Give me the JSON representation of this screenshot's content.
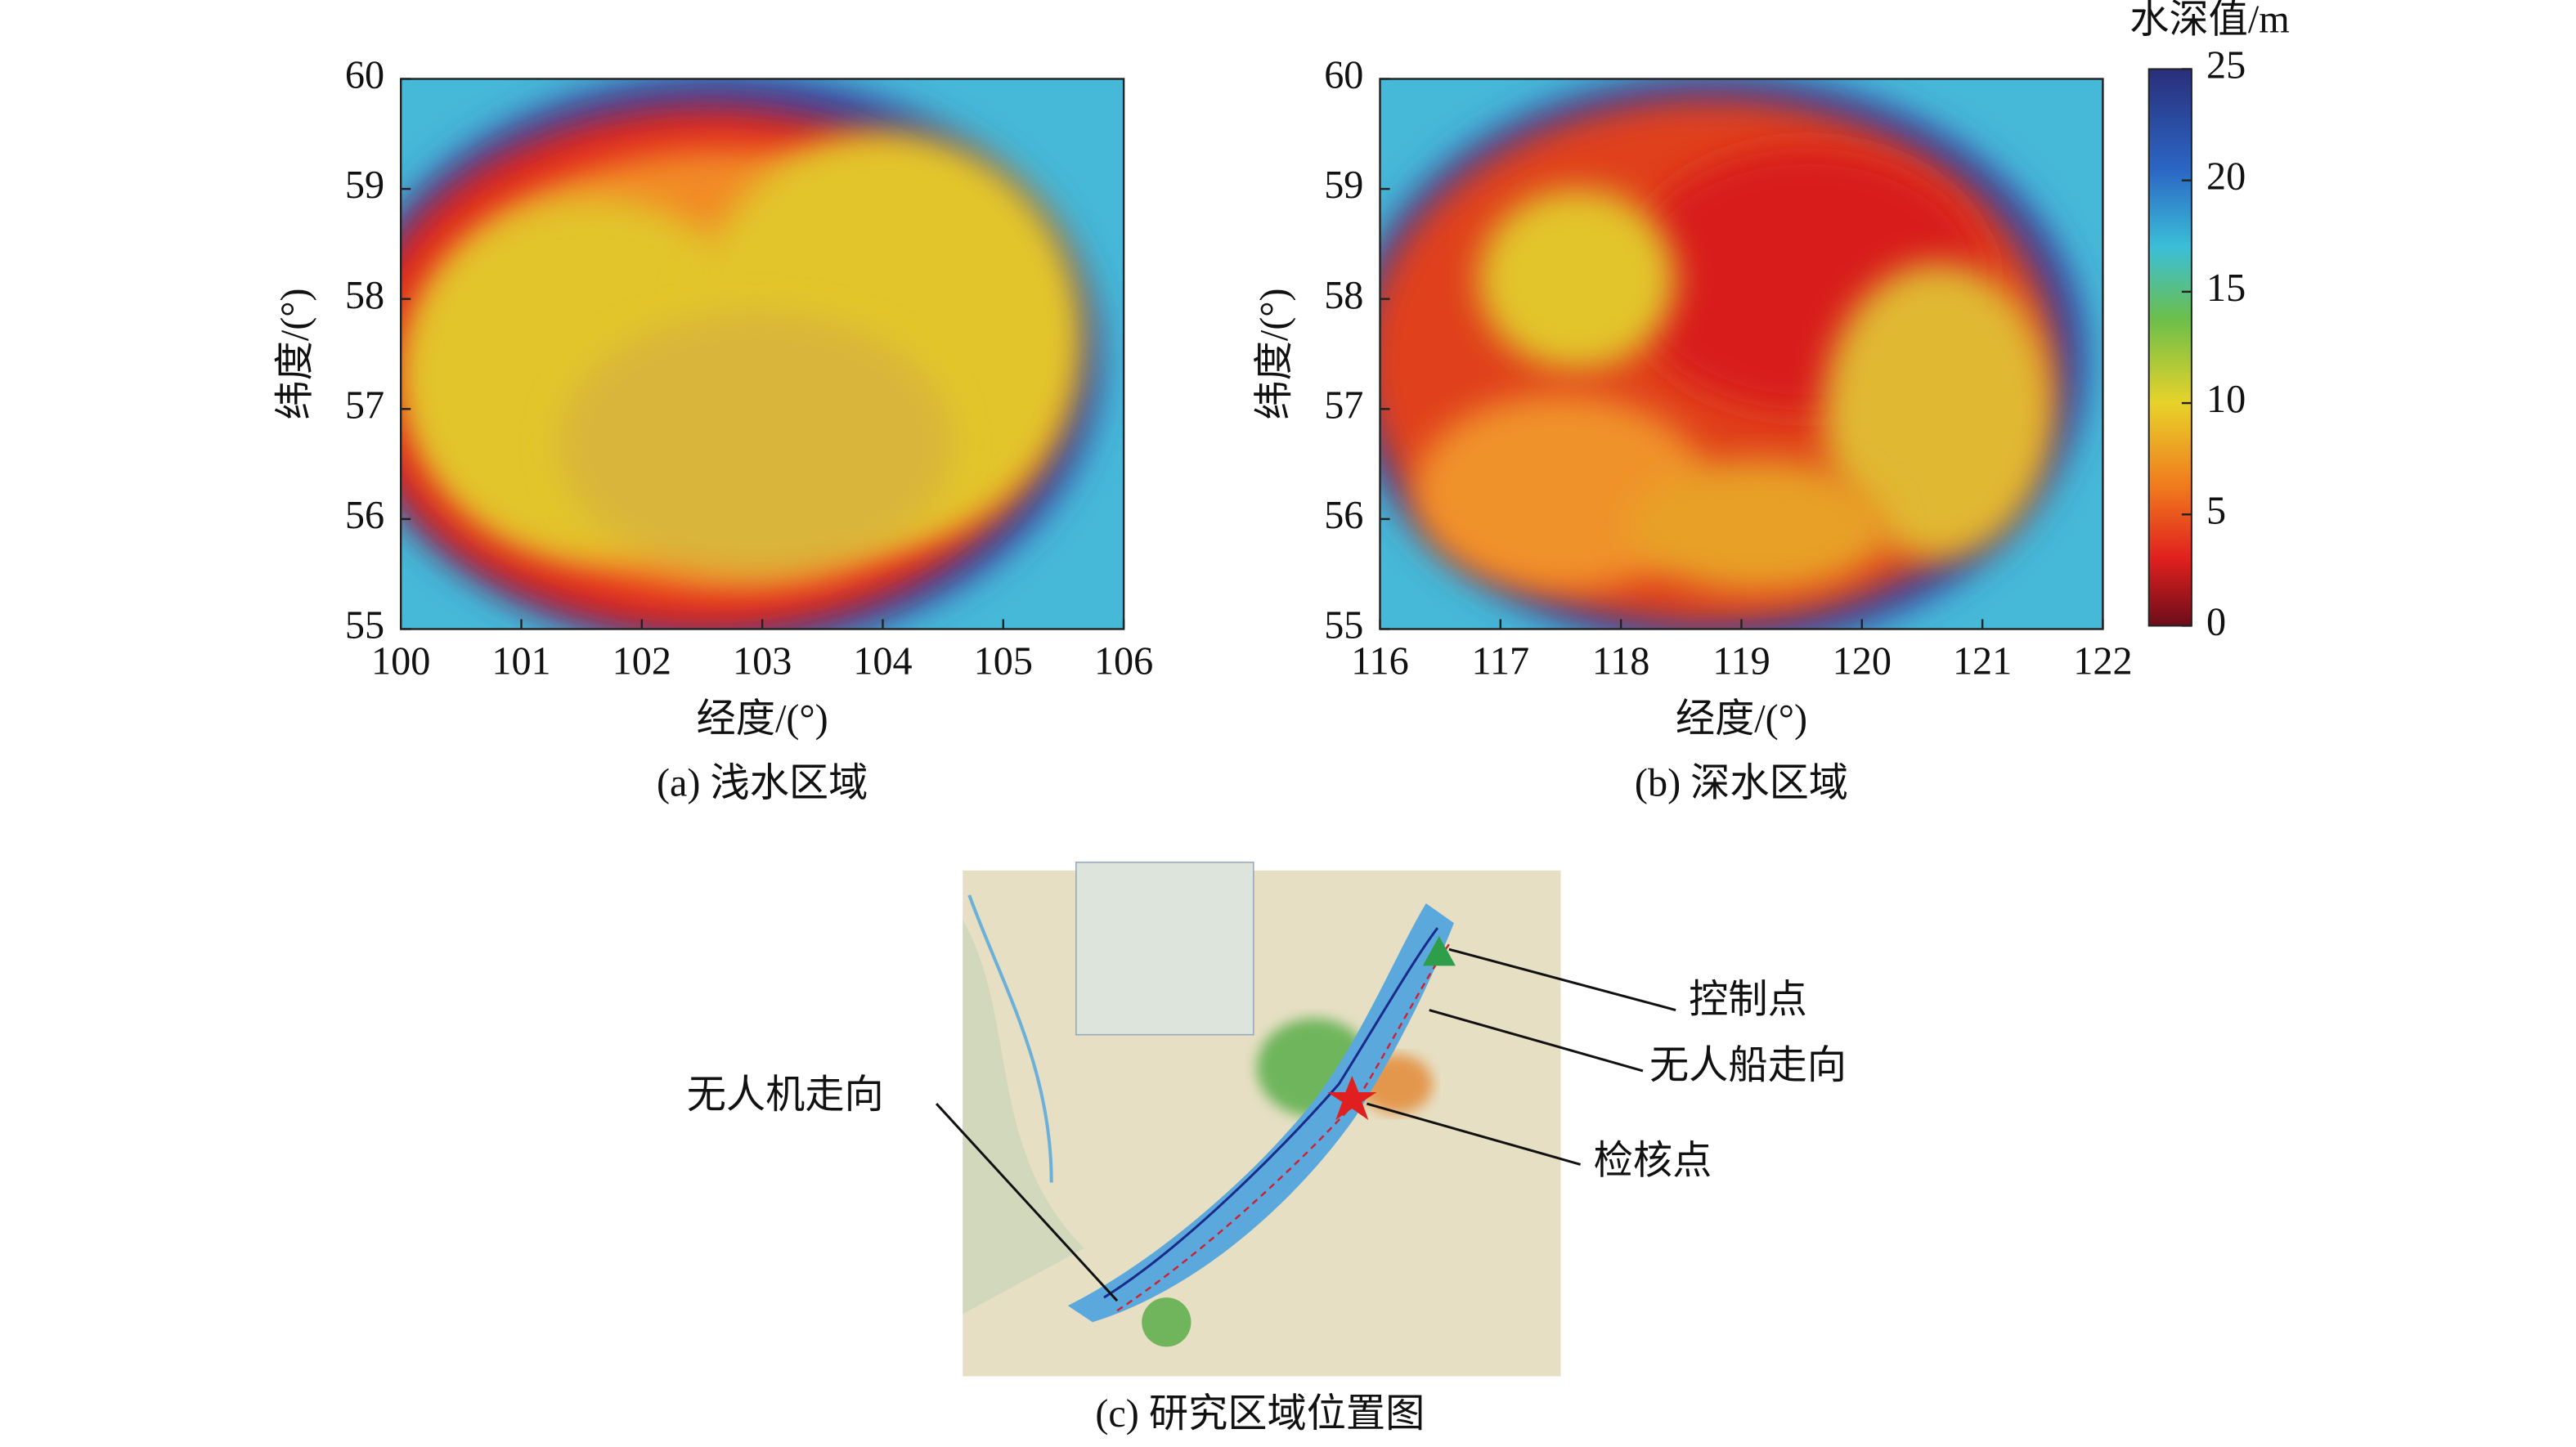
{
  "chart_data": [
    {
      "type": "heatmap",
      "caption": "(a) 浅水区域",
      "xlabel": "经度/(°)",
      "ylabel": "纬度/(°)",
      "xlim": [
        100,
        106
      ],
      "ylim": [
        55,
        60
      ],
      "xticks": [
        100,
        101,
        102,
        103,
        104,
        105,
        106
      ],
      "yticks": [
        55,
        56,
        57,
        58,
        59,
        60
      ]
    },
    {
      "type": "heatmap",
      "caption": "(b) 深水区域",
      "xlabel": "经度/(°)",
      "ylabel": "纬度/(°)",
      "xlim": [
        116,
        122
      ],
      "ylim": [
        55,
        60
      ],
      "xticks": [
        116,
        117,
        118,
        119,
        120,
        121,
        122
      ],
      "yticks": [
        55,
        56,
        57,
        58,
        59,
        60
      ]
    }
  ],
  "colorbar": {
    "title": "水深值/m",
    "lim": [
      0,
      25
    ],
    "ticks": [
      0,
      5,
      10,
      15,
      20,
      25
    ]
  },
  "map": {
    "caption": "(c) 研究区域位置图",
    "labels": [
      "控制点",
      "无人船走向",
      "检核点",
      "无人机走向"
    ]
  }
}
